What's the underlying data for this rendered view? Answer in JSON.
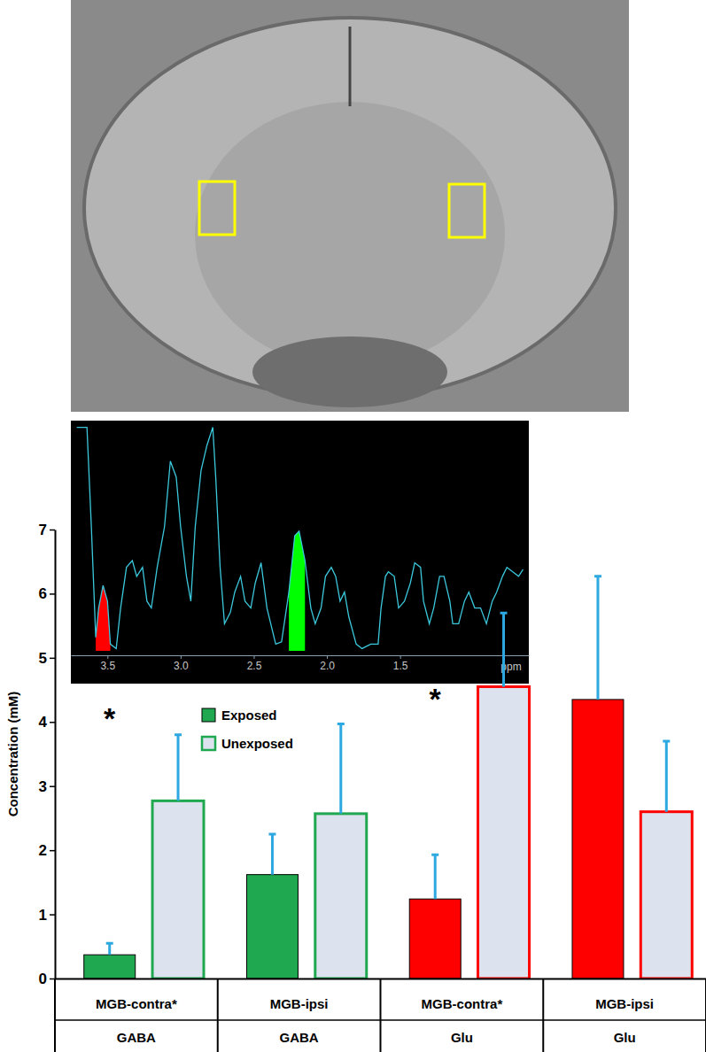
{
  "chart_data": [
    {
      "type": "bar",
      "ylabel": "Concentration (mM)",
      "categories": [
        "MGB-contra*",
        "MGB-ipsi",
        "MGB-contra*",
        "MGB-ipsi"
      ],
      "groups": [
        "GABA",
        "GABA",
        "Glu",
        "Glu"
      ],
      "ylim": [
        0,
        7
      ],
      "yticks": [
        0,
        1,
        2,
        3,
        4,
        5,
        6,
        7
      ],
      "legend": "upper left",
      "series": [
        {
          "name": "Exposed",
          "colors": [
            "#1fa84f",
            "#1fa84f",
            "#ff0000",
            "#ff0000"
          ],
          "values": [
            0.37,
            1.62,
            1.24,
            4.35
          ],
          "errors": [
            0.18,
            0.63,
            0.69,
            1.92
          ]
        },
        {
          "name": "Unexposed",
          "color": "#dce3ee",
          "colors": [
            "#1fa84f",
            "#1fa84f",
            "#ff0000",
            "#ff0000"
          ],
          "values": [
            2.77,
            2.57,
            4.55,
            2.6
          ],
          "errors": [
            1.03,
            1.4,
            1.15,
            1.1
          ]
        }
      ],
      "annotations": [
        {
          "text": "*",
          "category": 0,
          "y": 3.9
        },
        {
          "text": "*",
          "category": 2,
          "y": 4.2
        }
      ]
    },
    {
      "type": "line",
      "xlabel": "ppm",
      "x": [
        3.71,
        3.64,
        3.61,
        3.58,
        3.56,
        3.53,
        3.5,
        3.48,
        3.44,
        3.41,
        3.37,
        3.33,
        3.3,
        3.26,
        3.23,
        3.2,
        3.16,
        3.11,
        3.07,
        3.03,
        3,
        2.96,
        2.93,
        2.9,
        2.86,
        2.82,
        2.78,
        2.76,
        2.73,
        2.7,
        2.66,
        2.63,
        2.59,
        2.56,
        2.52,
        2.49,
        2.45,
        2.41,
        2.35,
        2.31,
        2.26,
        2.22,
        2.19,
        2.15,
        2.11,
        2.08,
        2.04,
        2.01,
        1.97,
        1.94,
        1.91,
        1.88,
        1.85,
        1.8,
        1.76,
        1.7,
        1.65,
        1.63,
        1.6,
        1.58,
        1.54,
        1.51,
        1.47,
        1.43,
        1.4,
        1.36,
        1.34,
        1.3,
        1.27,
        1.23,
        1.2,
        1.16,
        1.14,
        1.1,
        1.06,
        1.03,
        0.99,
        0.95,
        0.91,
        0.87,
        0.84,
        0.8,
        0.77,
        0.73,
        0.69,
        0.66
      ],
      "values": [
        99,
        99,
        55,
        6,
        19,
        29,
        22,
        3,
        1,
        19,
        37,
        40,
        33,
        37,
        22,
        19,
        37,
        55,
        84,
        77,
        55,
        33,
        22,
        55,
        80,
        91,
        99,
        77,
        37,
        12,
        17,
        26,
        33,
        22,
        19,
        30,
        39,
        19,
        3,
        4,
        26,
        51,
        53,
        40,
        19,
        12,
        19,
        33,
        37,
        33,
        22,
        26,
        15,
        3,
        1,
        3,
        3,
        19,
        33,
        35,
        33,
        19,
        22,
        30,
        39,
        37,
        22,
        12,
        19,
        33,
        33,
        22,
        12,
        12,
        22,
        26,
        19,
        19,
        12,
        22,
        26,
        33,
        37,
        35,
        33,
        36
      ],
      "color": "#3cc8dc",
      "xlim": [
        3.75,
        0.62
      ],
      "xticks": [
        3.5,
        {
          "value": 3,
          "label": "3.0"
        },
        2.5,
        {
          "value": 2,
          "label": "2.0"
        },
        1.5
      ],
      "ylim": [
        0,
        100
      ],
      "tick_labels": "x",
      "highlights": [
        {
          "from": 3.6,
          "to": 3.48,
          "color": "#ff0000"
        },
        {
          "from": 2.28,
          "to": 2.13,
          "color": "#00ff00"
        }
      ]
    }
  ]
}
